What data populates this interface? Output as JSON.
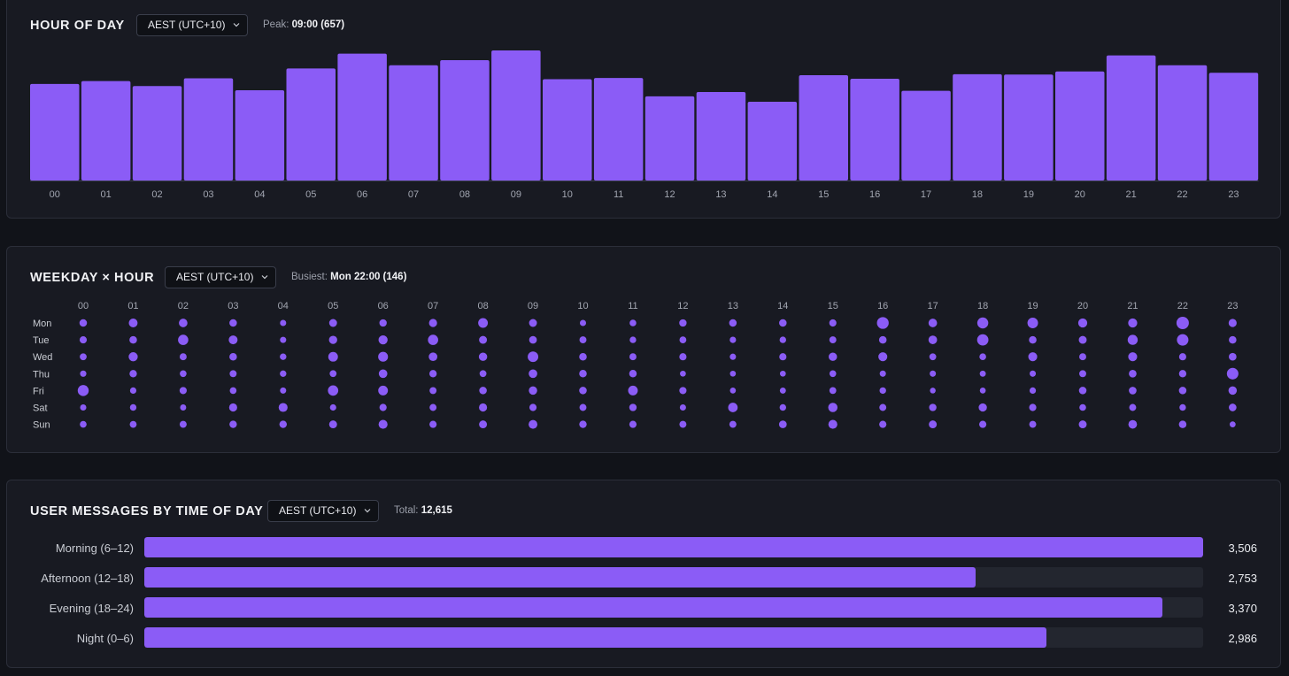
{
  "colors": {
    "accent": "#8b5cf6",
    "background": "#111319",
    "panel": "#181a22",
    "track": "#23262f",
    "muted": "#9b9faa"
  },
  "hour_panel": {
    "title": "HOUR OF DAY",
    "timezone": "AEST (UTC+10)",
    "peak_label": "Peak:",
    "peak_value": "09:00 (657)"
  },
  "weekday_panel": {
    "title": "WEEKDAY × HOUR",
    "timezone": "AEST (UTC+10)",
    "busiest_label": "Busiest:",
    "busiest_value": "Mon 22:00 (146)"
  },
  "time_panel": {
    "title": "USER MESSAGES BY TIME OF DAY",
    "timezone": "AEST (UTC+10)",
    "total_label": "Total:",
    "total_value": "12,615"
  },
  "chart_data": [
    {
      "type": "bar",
      "title": "HOUR OF DAY",
      "categories": [
        "00",
        "01",
        "02",
        "03",
        "04",
        "05",
        "06",
        "07",
        "08",
        "09",
        "10",
        "11",
        "12",
        "13",
        "14",
        "15",
        "16",
        "17",
        "18",
        "19",
        "20",
        "21",
        "22",
        "23"
      ],
      "values": [
        488,
        502,
        477,
        516,
        456,
        566,
        641,
        582,
        608,
        657,
        512,
        518,
        425,
        447,
        398,
        532,
        514,
        453,
        537,
        535,
        551,
        632,
        582,
        544
      ],
      "ylim": [
        0,
        657
      ],
      "xlabel": "",
      "ylabel": ""
    },
    {
      "type": "heatmap",
      "title": "WEEKDAY × HOUR",
      "x": [
        "00",
        "01",
        "02",
        "03",
        "04",
        "05",
        "06",
        "07",
        "08",
        "09",
        "10",
        "11",
        "12",
        "13",
        "14",
        "15",
        "16",
        "17",
        "18",
        "19",
        "20",
        "21",
        "22",
        "23"
      ],
      "y": [
        "Mon",
        "Tue",
        "Wed",
        "Thu",
        "Fri",
        "Sat",
        "Sun"
      ],
      "max": 146,
      "values": [
        [
          80,
          98,
          95,
          80,
          60,
          85,
          78,
          88,
          110,
          85,
          60,
          68,
          78,
          80,
          80,
          75,
          138,
          95,
          128,
          122,
          102,
          102,
          146,
          88
        ],
        [
          75,
          80,
          118,
          98,
          60,
          90,
          102,
          118,
          85,
          82,
          72,
          65,
          70,
          62,
          65,
          72,
          80,
          95,
          132,
          80,
          85,
          115,
          135,
          80
        ],
        [
          70,
          102,
          72,
          80,
          65,
          110,
          112,
          95,
          92,
          122,
          80,
          72,
          75,
          60,
          75,
          92,
          100,
          70,
          68,
          100,
          72,
          100,
          75,
          82
        ],
        [
          62,
          78,
          68,
          72,
          65,
          70,
          95,
          78,
          70,
          95,
          80,
          80,
          55,
          55,
          55,
          68,
          60,
          60,
          58,
          60,
          72,
          82,
          78,
          135
        ],
        [
          128,
          62,
          75,
          68,
          60,
          120,
          110,
          72,
          80,
          92,
          80,
          110,
          75,
          55,
          58,
          70,
          65,
          52,
          55,
          62,
          80,
          82,
          80,
          92
        ],
        [
          60,
          65,
          58,
          88,
          100,
          62,
          75,
          72,
          88,
          75,
          72,
          78,
          60,
          108,
          65,
          105,
          72,
          78,
          90,
          75,
          68,
          72,
          65,
          82
        ],
        [
          68,
          70,
          72,
          78,
          78,
          85,
          100,
          75,
          85,
          98,
          78,
          75,
          72,
          72,
          82,
          100,
          75,
          85,
          75,
          72,
          85,
          95,
          80,
          55
        ]
      ]
    },
    {
      "type": "bar",
      "orientation": "horizontal",
      "title": "USER MESSAGES BY TIME OF DAY",
      "categories": [
        "Morning (6–12)",
        "Afternoon (12–18)",
        "Evening (18–24)",
        "Night (0–6)"
      ],
      "values": [
        3506,
        2753,
        3370,
        2986
      ],
      "value_labels": [
        "3,506",
        "2,753",
        "3,370",
        "2,986"
      ],
      "xlim": [
        0,
        3506
      ]
    }
  ]
}
